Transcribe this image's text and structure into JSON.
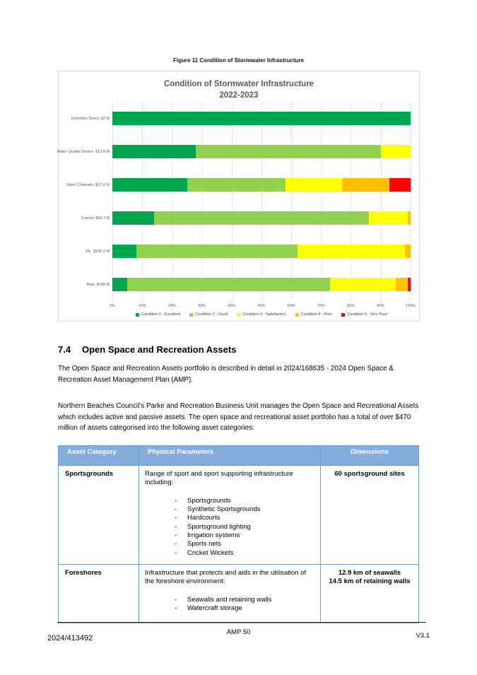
{
  "page": {
    "figure_caption": "Figure 11 Condition of Stormwater Infrastructure",
    "footer": {
      "doc_number": "2024/413492",
      "center": "AMP 50",
      "version": "V3.1"
    }
  },
  "chart_data": {
    "type": "bar",
    "orientation": "horizontal",
    "stacked": true,
    "title": "Condition of Stormwater Infrastructure",
    "subtitle": "2022-2023",
    "categories": [
      "Detention Basin, $2 M",
      "Water Quality Device, $12.8 M",
      "Open Channels, $17.6 M",
      "Culvert, $84.7 M",
      "Pit , $195.2 M",
      "Pipe, $798 M"
    ],
    "series": [
      {
        "name": "Condition 1 - Excellent",
        "color": "#00a550",
        "values": [
          100,
          28,
          25,
          14,
          8,
          5
        ]
      },
      {
        "name": "Condition 2 - Good",
        "color": "#92d050",
        "values": [
          0,
          62,
          33,
          72,
          54,
          68
        ]
      },
      {
        "name": "Condition 3 - Satisfactory",
        "color": "#ffff00",
        "values": [
          0,
          10,
          19,
          13,
          36,
          22
        ]
      },
      {
        "name": "Condition 4 - Poor",
        "color": "#ffc000",
        "values": [
          0,
          0,
          16,
          1,
          2,
          4
        ]
      },
      {
        "name": "Condition 5 - Very Poor",
        "color": "#ff0000",
        "values": [
          0,
          0,
          7,
          0,
          0,
          1
        ]
      }
    ],
    "x_ticks": [
      "0%",
      "10%",
      "20%",
      "30%",
      "40%",
      "50%",
      "60%",
      "70%",
      "80%",
      "90%",
      "100%"
    ],
    "xlim": [
      0,
      100
    ],
    "grid": true,
    "legend_position": "bottom"
  },
  "section": {
    "number": "7.4",
    "title": "Open Space and Recreation Assets",
    "paragraph1": "The Open Space and Recreation Assets portfolio is described in detail in 2024/168635 - 2024 Open Space & Recreation Asset Management Plan (AMP).",
    "paragraph2": "Northern Beaches Council’s Parke and Recreation Business Unit manages the Open Space and Recreational Assets which includes active and passive assets. The open space and recreational asset portfolio has a total of over $470 million of assets categorised into the following asset categories:"
  },
  "table": {
    "headers": [
      "Asset Category",
      "Physical Parameters",
      "Dimensions"
    ],
    "rows": [
      {
        "category": "Sportsgrounds",
        "description": "Range of sport and sport supporting infrastructure including:",
        "bullets": [
          "Sportsgrounds",
          "Synthetic Sportsgrounds",
          "Hardcourts",
          "Sportsground lighting",
          "Irrigation systems",
          "Sports nets",
          "Cricket Wickets"
        ],
        "dimensions": "60 sportsground sites"
      },
      {
        "category": "Foreshores",
        "description": "Infrastructure that protects and aids in the utilisation of the foreshore environment:",
        "bullets": [
          "Seawalls and retaining walls",
          "Watercraft storage"
        ],
        "dimensions": "12.9 km of seawalls\n14.5 km of retaining walls"
      }
    ]
  }
}
